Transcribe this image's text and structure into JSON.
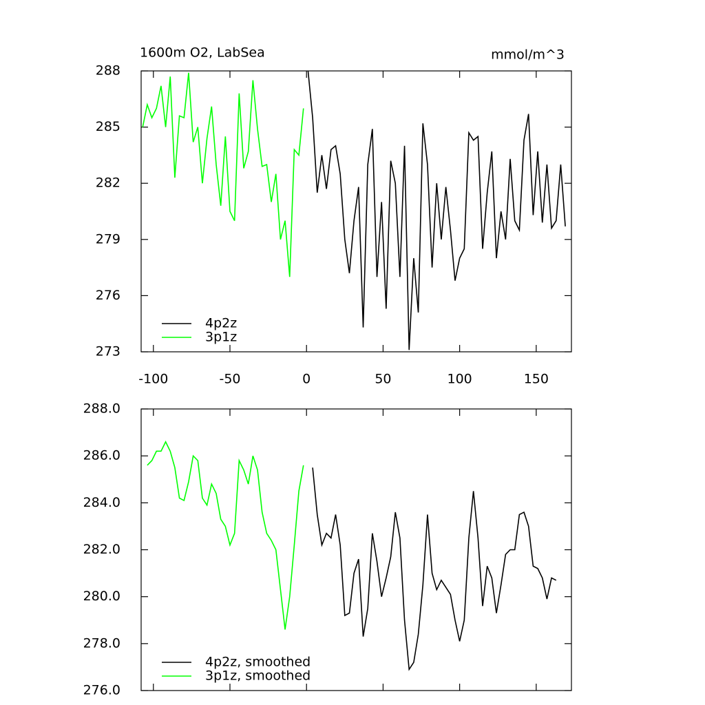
{
  "chart_data": [
    {
      "type": "line",
      "title": "1600m O2, LabSea",
      "units": "mmol/m^3",
      "xlim": [
        -108,
        173
      ],
      "xticks": [
        -100,
        -50,
        0,
        50,
        100,
        150
      ],
      "xtick_labels": true,
      "ylim": [
        273,
        288
      ],
      "yticks": [
        273,
        276,
        279,
        282,
        285,
        288
      ],
      "legend": "lower left",
      "series": [
        {
          "name": "4p2z",
          "color": "#000000",
          "x": [
            1,
            4,
            7,
            10,
            13,
            16,
            19,
            22,
            25,
            28,
            31,
            34,
            37,
            40,
            43,
            46,
            49,
            52,
            55,
            58,
            61,
            64,
            67,
            70,
            73,
            76,
            79,
            82,
            85,
            88,
            91,
            94,
            97,
            100,
            103,
            106,
            109,
            112,
            115,
            118,
            121,
            124,
            127,
            130,
            133,
            136,
            139,
            142,
            145,
            148,
            151,
            154,
            157,
            160,
            163,
            166,
            169
          ],
          "values": [
            288.0,
            285.5,
            281.5,
            283.5,
            281.7,
            283.8,
            284.0,
            282.5,
            279.0,
            277.2,
            280.0,
            281.8,
            274.3,
            283.0,
            284.9,
            277.0,
            281.0,
            275.3,
            283.2,
            282.0,
            277.0,
            284.0,
            273.1,
            278.0,
            275.1,
            285.2,
            283.0,
            277.5,
            282.0,
            279.0,
            281.8,
            279.5,
            276.8,
            278.0,
            278.5,
            284.7,
            284.3,
            284.5,
            278.5,
            281.5,
            283.7,
            278.0,
            280.5,
            279.0,
            283.3,
            280.0,
            279.5,
            284.3,
            285.7,
            280.3,
            283.7,
            279.9,
            283.0,
            279.6,
            280.0,
            283.0,
            279.7
          ]
        },
        {
          "name": "3p1z",
          "color": "#00ff00",
          "x": [
            -107,
            -104,
            -101,
            -98,
            -95,
            -92,
            -89,
            -86,
            -83,
            -80,
            -77,
            -74,
            -71,
            -68,
            -65,
            -62,
            -59,
            -56,
            -53,
            -50,
            -47,
            -44,
            -41,
            -38,
            -35,
            -32,
            -29,
            -26,
            -23,
            -20,
            -17,
            -14,
            -11,
            -8,
            -5,
            -2
          ],
          "values": [
            285.0,
            286.2,
            285.5,
            286.0,
            287.2,
            285.0,
            287.7,
            282.3,
            285.6,
            285.5,
            287.9,
            284.2,
            285.0,
            282.0,
            284.4,
            286.1,
            283.0,
            280.8,
            284.5,
            280.5,
            280.0,
            286.8,
            282.8,
            283.7,
            287.5,
            284.9,
            282.9,
            283.0,
            281.0,
            282.5,
            279.0,
            280.0,
            277.0,
            283.8,
            283.5,
            286.0
          ]
        }
      ]
    },
    {
      "type": "line",
      "xlim": [
        -108,
        173
      ],
      "xticks": [
        -100,
        -50,
        0,
        50,
        100,
        150
      ],
      "xtick_labels": false,
      "ylim": [
        276,
        288
      ],
      "yticks": [
        {
          "value": 276,
          "label": "276.0"
        },
        {
          "value": 278,
          "label": "278.0"
        },
        {
          "value": 280,
          "label": "280.0"
        },
        {
          "value": 282,
          "label": "282.0"
        },
        {
          "value": 284,
          "label": "284.0"
        },
        {
          "value": 286,
          "label": "286.0"
        },
        {
          "value": 288,
          "label": "288.0"
        }
      ],
      "legend": "lower left",
      "series": [
        {
          "name": "4p2z, smoothed",
          "color": "#000000",
          "x": [
            4,
            7,
            10,
            13,
            16,
            19,
            22,
            25,
            28,
            31,
            34,
            37,
            40,
            43,
            46,
            49,
            52,
            55,
            58,
            61,
            64,
            67,
            70,
            73,
            76,
            79,
            82,
            85,
            88,
            91,
            94,
            97,
            100,
            103,
            106,
            109,
            112,
            115,
            118,
            121,
            124,
            127,
            130,
            133,
            136,
            139,
            142,
            145,
            148,
            151,
            154,
            157,
            160,
            163
          ],
          "values": [
            285.5,
            283.5,
            282.2,
            282.7,
            282.5,
            283.5,
            282.2,
            279.2,
            279.3,
            281.0,
            281.6,
            278.3,
            279.5,
            282.7,
            281.5,
            280.0,
            280.8,
            281.7,
            283.6,
            282.5,
            279.0,
            276.9,
            277.2,
            278.4,
            280.5,
            283.5,
            281.0,
            280.3,
            280.7,
            280.4,
            280.1,
            279.0,
            278.1,
            279.0,
            282.5,
            284.5,
            282.5,
            279.6,
            281.3,
            280.8,
            279.3,
            280.5,
            281.8,
            282.0,
            282.0,
            283.5,
            283.6,
            283.0,
            281.3,
            281.2,
            280.8,
            279.9,
            280.8,
            280.7
          ]
        },
        {
          "name": "3p1z, smoothed",
          "color": "#00ff00",
          "x": [
            -104,
            -101,
            -98,
            -95,
            -92,
            -89,
            -86,
            -83,
            -80,
            -77,
            -74,
            -71,
            -68,
            -65,
            -62,
            -59,
            -56,
            -53,
            -50,
            -47,
            -44,
            -41,
            -38,
            -35,
            -32,
            -29,
            -26,
            -23,
            -20,
            -17,
            -14,
            -11,
            -8,
            -5,
            -2
          ],
          "values": [
            285.6,
            285.8,
            286.2,
            286.2,
            286.6,
            286.2,
            285.5,
            284.2,
            284.1,
            284.9,
            286.0,
            285.8,
            284.2,
            283.9,
            284.8,
            284.4,
            283.3,
            283.0,
            282.2,
            282.7,
            285.8,
            285.4,
            284.8,
            286.0,
            285.4,
            283.6,
            282.7,
            282.4,
            282.0,
            280.3,
            278.6,
            280.0,
            282.2,
            284.5,
            285.6
          ]
        }
      ]
    }
  ]
}
